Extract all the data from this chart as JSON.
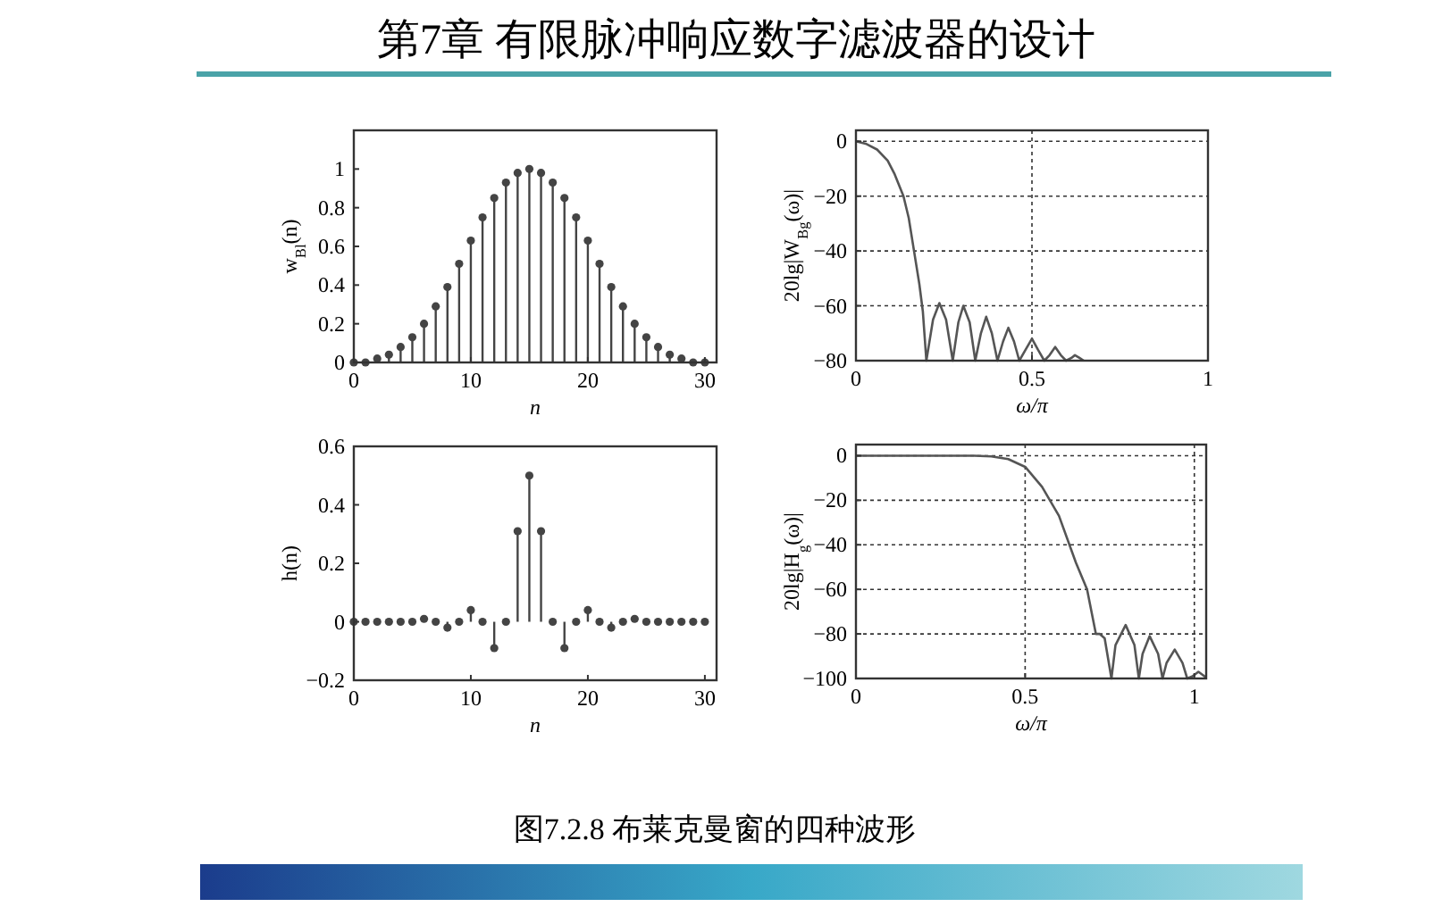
{
  "chart_data": [
    {
      "type": "other",
      "title": "第7章  有限脉冲响应数字滤波器的设计",
      "annotations": [
        "图7.2.8  布莱克曼窗的四种波形"
      ]
    },
    {
      "type": "lollipop",
      "xlabel": "n",
      "ylabel": "w$_{Bl}$(n)",
      "x": [
        0,
        1,
        2,
        3,
        4,
        5,
        6,
        7,
        8,
        9,
        10,
        11,
        12,
        13,
        14,
        15,
        16,
        17,
        18,
        19,
        20,
        21,
        22,
        23,
        24,
        25,
        26,
        27,
        28,
        29,
        30
      ],
      "values": [
        0,
        0,
        0.02,
        0.04,
        0.08,
        0.13,
        0.2,
        0.29,
        0.39,
        0.51,
        0.63,
        0.75,
        0.85,
        0.93,
        0.98,
        1,
        0.98,
        0.93,
        0.85,
        0.75,
        0.63,
        0.51,
        0.39,
        0.29,
        0.2,
        0.13,
        0.08,
        0.04,
        0.02,
        0,
        0
      ],
      "color": "#444444",
      "marker": "circle",
      "xlim": [
        0,
        31
      ],
      "xticks": [
        0,
        10,
        20,
        30
      ],
      "ylim": [
        0,
        1.2
      ],
      "yticks": [
        0,
        0.2,
        0.4,
        0.6,
        0.8,
        1
      ]
    },
    {
      "type": "line",
      "xlabel": "ω/π",
      "ylabel": "20lg|W$_{Bg}$(ω)|",
      "grid": true,
      "color": "#555555",
      "x": [
        0,
        0.03,
        0.06,
        0.09,
        0.11,
        0.135,
        0.15,
        0.165,
        0.18,
        0.19,
        0.2,
        0.219,
        0.237,
        0.256,
        0.275,
        0.291,
        0.305,
        0.323,
        0.339,
        0.355,
        0.37,
        0.386,
        0.402,
        0.418,
        0.433,
        0.449,
        0.464,
        0.482,
        0.5,
        0.517,
        0.535,
        0.55,
        0.566,
        0.582,
        0.597,
        0.612,
        0.622,
        0.635,
        0.647
      ],
      "values": [
        0,
        -1,
        -3,
        -7,
        -12,
        -20,
        -28,
        -40,
        -52,
        -62,
        -80,
        -65,
        -59,
        -65,
        -80,
        -66,
        -60,
        -66,
        -80,
        -70,
        -64,
        -70,
        -80,
        -73,
        -68,
        -73,
        -80,
        -76,
        -72,
        -76,
        -80,
        -78,
        -75,
        -78,
        -80,
        -79,
        -78,
        -79,
        -80
      ],
      "xlim": [
        0,
        1
      ],
      "xticks": [
        0,
        0.5,
        1
      ],
      "ylim": [
        -80,
        4
      ],
      "yticks": [
        {
          "value": -80,
          "label": "−80"
        },
        {
          "value": -60,
          "label": "−60"
        },
        {
          "value": -40,
          "label": "−40"
        },
        {
          "value": -20,
          "label": "−20"
        },
        0
      ]
    },
    {
      "type": "lollipop",
      "xlabel": "n",
      "ylabel": "h(n)",
      "x": [
        0,
        1,
        2,
        3,
        4,
        5,
        6,
        7,
        8,
        9,
        10,
        11,
        12,
        13,
        14,
        15,
        16,
        17,
        18,
        19,
        20,
        21,
        22,
        23,
        24,
        25,
        26,
        27,
        28,
        29,
        30
      ],
      "values": [
        0,
        0,
        0,
        0,
        0,
        0,
        0.01,
        0,
        -0.02,
        0,
        0.04,
        0,
        -0.09,
        0,
        0.31,
        0.5,
        0.31,
        0,
        -0.09,
        0,
        0.04,
        0,
        -0.02,
        0,
        0.01,
        0,
        0,
        0,
        0,
        0,
        0
      ],
      "color": "#444444",
      "marker": "circle",
      "xlim": [
        0,
        31
      ],
      "xticks": [
        0,
        10,
        20,
        30
      ],
      "ylim": [
        -0.2,
        0.6
      ],
      "yticks": [
        {
          "value": -0.2,
          "label": "−0.2"
        },
        0,
        0.2,
        0.4,
        0.6
      ]
    },
    {
      "type": "line",
      "xlabel": "ω/π",
      "ylabel": "20lg|H$_{g}$(ω)|",
      "grid": true,
      "color": "#555555",
      "x": [
        0,
        0.1,
        0.2,
        0.3,
        0.35,
        0.4,
        0.45,
        0.5,
        0.55,
        0.6,
        0.65,
        0.683,
        0.709,
        0.72,
        0.735,
        0.755,
        0.767,
        0.797,
        0.823,
        0.836,
        0.847,
        0.868,
        0.893,
        0.906,
        0.918,
        0.942,
        0.965,
        0.979,
        0.995,
        1.012,
        1.03,
        1.035
      ],
      "values": [
        0,
        0,
        0,
        0,
        0,
        -0.3,
        -1.5,
        -5,
        -14,
        -27,
        -48,
        -60,
        -80,
        -80,
        -82,
        -100,
        -85,
        -76,
        -85,
        -100,
        -89,
        -81,
        -89,
        -100,
        -93,
        -87,
        -93,
        -100,
        -99,
        -97,
        -99,
        -100
      ],
      "xlim": [
        0,
        1.035
      ],
      "xticks": [
        0,
        0.5,
        1
      ],
      "ylim": [
        -100,
        5
      ],
      "yticks": [
        {
          "value": -100,
          "label": "−100"
        },
        {
          "value": -80,
          "label": "−80"
        },
        {
          "value": -60,
          "label": "−60"
        },
        {
          "value": -40,
          "label": "−40"
        },
        {
          "value": -20,
          "label": "−20"
        },
        0
      ]
    }
  ]
}
